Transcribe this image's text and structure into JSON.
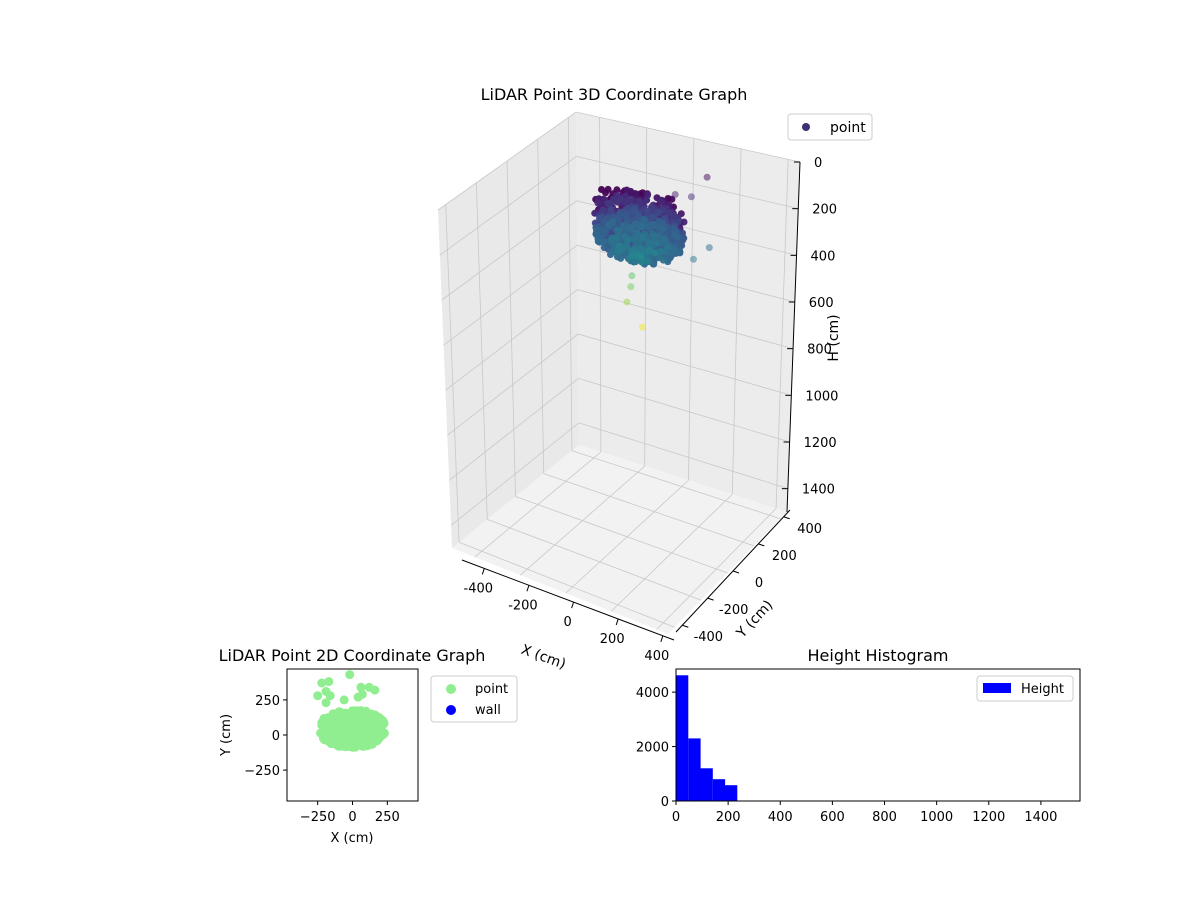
{
  "chart_data": [
    {
      "type": "scatter3d",
      "title": "LiDAR Point 3D Coordinate Graph",
      "xlabel": "X (cm)",
      "ylabel": "Y (cm)",
      "zlabel": "H (cm)",
      "xlim": [
        -500,
        450
      ],
      "ylim": [
        -450,
        450
      ],
      "zlim": [
        0,
        1500
      ],
      "z_inverted": true,
      "xticks": [
        -400,
        -200,
        0,
        200,
        400
      ],
      "yticks": [
        -400,
        -200,
        0,
        200,
        400
      ],
      "zticks": [
        0,
        200,
        400,
        600,
        800,
        1000,
        1200,
        1400
      ],
      "grid": true,
      "legend_position": "top-right",
      "colormap": "viridis",
      "series": [
        {
          "name": "point",
          "cluster": {
            "x_range": [
              -150,
              200
            ],
            "y_range": [
              -100,
              200
            ],
            "h_range": [
              0,
              250
            ]
          },
          "outliers": [
            {
              "x": 120,
              "y": 380,
              "h": 5
            },
            {
              "x": 100,
              "y": 300,
              "h": 60
            },
            {
              "x": 60,
              "y": 250,
              "h": 40
            },
            {
              "x": 240,
              "y": 200,
              "h": 180
            },
            {
              "x": 220,
              "y": 120,
              "h": 200
            },
            {
              "x": -40,
              "y": 100,
              "h": 370
            },
            {
              "x": -20,
              "y": 60,
              "h": 390
            },
            {
              "x": 0,
              "y": 0,
              "h": 420
            },
            {
              "x": 80,
              "y": -20,
              "h": 490
            }
          ]
        }
      ]
    },
    {
      "type": "scatter",
      "title": "LiDAR Point 2D Coordinate Graph",
      "xlabel": "X (cm)",
      "ylabel": "Y (cm)",
      "xlim": [
        -470,
        470
      ],
      "ylim": [
        -470,
        470
      ],
      "xticks": [
        -250,
        0,
        250
      ],
      "yticks": [
        -250,
        0,
        250
      ],
      "legend_position": "outside-right",
      "series": [
        {
          "name": "point",
          "color": "#90ee90",
          "cluster": {
            "x_range": [
              -230,
              230
            ],
            "y_range": [
              -100,
              200
            ]
          },
          "outliers": [
            {
              "x": -220,
              "y": 370
            },
            {
              "x": -170,
              "y": 380
            },
            {
              "x": -250,
              "y": 280
            },
            {
              "x": -190,
              "y": 310
            },
            {
              "x": -160,
              "y": 280
            },
            {
              "x": -190,
              "y": 230
            },
            {
              "x": -60,
              "y": 250
            },
            {
              "x": -20,
              "y": 430
            },
            {
              "x": 60,
              "y": 340
            },
            {
              "x": 120,
              "y": 340
            },
            {
              "x": 160,
              "y": 320
            },
            {
              "x": 40,
              "y": 270
            },
            {
              "x": 70,
              "y": 290
            }
          ]
        },
        {
          "name": "wall",
          "color": "#0000ff"
        }
      ]
    },
    {
      "type": "bar",
      "title": "Height Histogram",
      "xlabel": "",
      "ylabel": "",
      "xlim": [
        0,
        1550
      ],
      "ylim": [
        0,
        4850
      ],
      "xticks": [
        0,
        200,
        400,
        600,
        800,
        1000,
        1200,
        1400
      ],
      "yticks": [
        0,
        2000,
        4000
      ],
      "legend_position": "top-right",
      "series": [
        {
          "name": "Height",
          "color": "#0000ff",
          "bins": [
            {
              "start": 0,
              "end": 47,
              "count": 4620
            },
            {
              "start": 47,
              "end": 94,
              "count": 2300
            },
            {
              "start": 94,
              "end": 141,
              "count": 1200
            },
            {
              "start": 141,
              "end": 188,
              "count": 800
            },
            {
              "start": 188,
              "end": 235,
              "count": 580
            }
          ]
        }
      ]
    }
  ]
}
